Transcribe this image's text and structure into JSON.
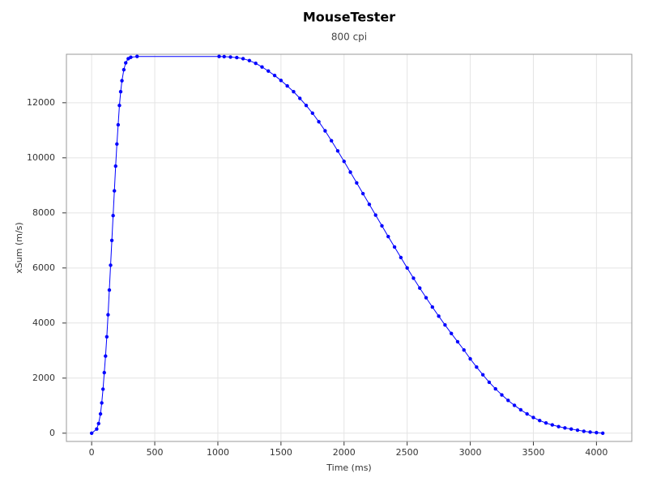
{
  "chart_data": {
    "type": "line",
    "title": "MouseTester",
    "subtitle": "800 cpi",
    "x_label": "Time (ms)",
    "y_label": "xSum (m/s)",
    "xlim": [
      -200,
      4280
    ],
    "ylim": [
      -300,
      13760
    ],
    "xticks": [
      0,
      500,
      1000,
      1500,
      2000,
      2500,
      3000,
      3500,
      4000
    ],
    "yticks": [
      0,
      2000,
      4000,
      6000,
      8000,
      10000,
      12000
    ],
    "grid": true,
    "series": [
      {
        "name": "xSum",
        "color": "#0000ff",
        "x": [
          0,
          40,
          55,
          70,
          80,
          90,
          100,
          110,
          120,
          130,
          140,
          150,
          160,
          170,
          180,
          190,
          200,
          210,
          220,
          230,
          240,
          255,
          270,
          290,
          310,
          360,
          1010,
          1050,
          1100,
          1150,
          1200,
          1250,
          1300,
          1350,
          1400,
          1450,
          1500,
          1550,
          1600,
          1650,
          1700,
          1750,
          1800,
          1850,
          1900,
          1950,
          2000,
          2050,
          2100,
          2150,
          2200,
          2250,
          2300,
          2350,
          2400,
          2450,
          2500,
          2550,
          2600,
          2650,
          2700,
          2750,
          2800,
          2850,
          2900,
          2950,
          3000,
          3050,
          3100,
          3150,
          3200,
          3250,
          3300,
          3350,
          3400,
          3450,
          3500,
          3550,
          3600,
          3650,
          3700,
          3750,
          3800,
          3850,
          3900,
          3950,
          4000,
          4050
        ],
        "values": [
          0,
          150,
          350,
          700,
          1100,
          1600,
          2200,
          2800,
          3500,
          4300,
          5200,
          6100,
          7000,
          7900,
          8800,
          9700,
          10500,
          11200,
          11900,
          12400,
          12800,
          13200,
          13450,
          13600,
          13650,
          13680,
          13680,
          13675,
          13660,
          13640,
          13600,
          13530,
          13430,
          13300,
          13150,
          12990,
          12810,
          12610,
          12400,
          12160,
          11900,
          11620,
          11310,
          10980,
          10620,
          10250,
          9870,
          9480,
          9090,
          8700,
          8310,
          7920,
          7530,
          7140,
          6760,
          6380,
          6000,
          5630,
          5270,
          4920,
          4580,
          4250,
          3930,
          3620,
          3320,
          3020,
          2700,
          2400,
          2120,
          1850,
          1610,
          1390,
          1190,
          1010,
          850,
          700,
          570,
          460,
          370,
          300,
          240,
          190,
          150,
          110,
          70,
          40,
          20,
          0
        ]
      }
    ]
  }
}
